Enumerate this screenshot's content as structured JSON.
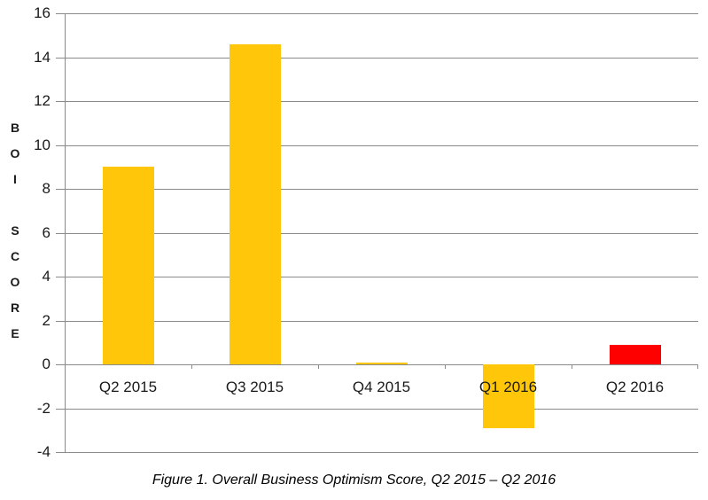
{
  "figure": {
    "caption": "Figure 1. Overall Business Optimism Score, Q2 2015 – Q2 2016"
  },
  "chart_data": {
    "type": "bar",
    "title": "",
    "categories": [
      "Q2 2015",
      "Q3 2015",
      "Q4 2015",
      "Q1 2016",
      "Q2 2016"
    ],
    "values": [
      9.0,
      14.6,
      0.1,
      -2.9,
      0.9
    ],
    "bar_colors": [
      "#FFC60A",
      "#FFC60A",
      "#FFC60A",
      "#FFC60A",
      "#FF0000"
    ],
    "xlabel": "",
    "ylabel": "BOI SCORE",
    "ylabel_chars": [
      "B",
      "O",
      "I",
      "",
      "S",
      "C",
      "O",
      "R",
      "E"
    ],
    "ylim": [
      -4,
      16
    ],
    "ytick_step": 2,
    "yticks": [
      16,
      14,
      12,
      10,
      8,
      6,
      4,
      2,
      0,
      -2,
      -4
    ],
    "grid": true,
    "legend_position": "none",
    "colors": {
      "bar_default": "#FFC60A",
      "bar_highlight": "#FF0000",
      "gridline": "#8A8A8A",
      "axis_text": "#1A1A1A",
      "background": "#FFFFFF"
    }
  }
}
